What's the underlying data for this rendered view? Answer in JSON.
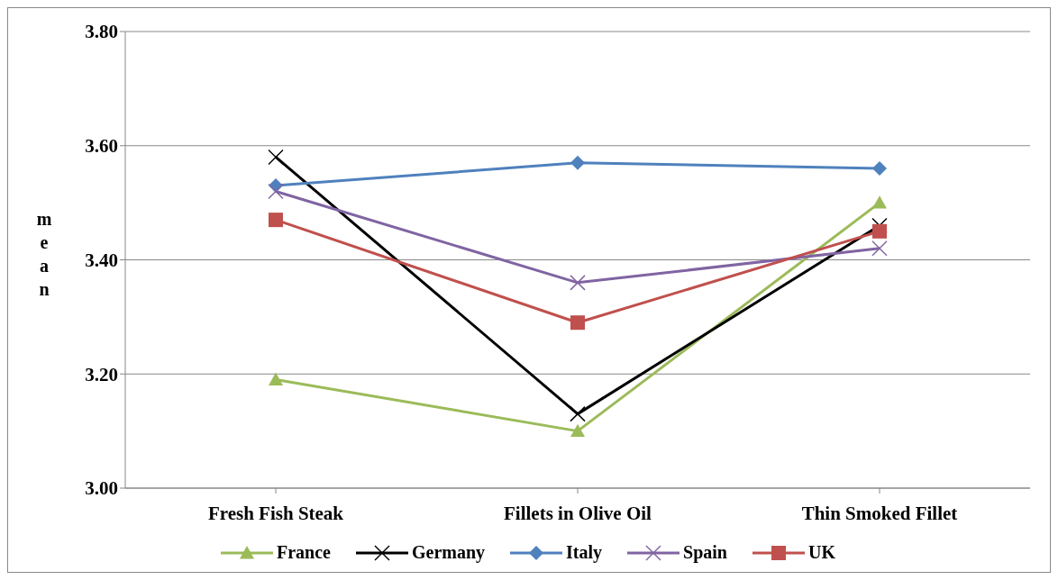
{
  "chart_data": {
    "type": "line",
    "ylabel": "mean",
    "categories": [
      "Fresh Fish Steak",
      "Fillets in Olive Oil",
      "Thin Smoked Fillet"
    ],
    "series": [
      {
        "name": "France",
        "color": "#9bbb59",
        "marker": "triangle",
        "values": [
          3.19,
          3.1,
          3.5
        ]
      },
      {
        "name": "Germany",
        "color": "#000000",
        "marker": "cross",
        "values": [
          3.58,
          3.13,
          3.46
        ]
      },
      {
        "name": "Italy",
        "color": "#4f81bd",
        "marker": "diamond",
        "values": [
          3.53,
          3.57,
          3.56
        ]
      },
      {
        "name": "Spain",
        "color": "#8064a2",
        "marker": "cross",
        "values": [
          3.52,
          3.36,
          3.42
        ]
      },
      {
        "name": "UK",
        "color": "#c0504d",
        "marker": "square",
        "values": [
          3.47,
          3.29,
          3.45
        ]
      }
    ],
    "ylim": [
      3.0,
      3.8
    ],
    "yticks": [
      {
        "value": 3.0,
        "label": "3.00"
      },
      {
        "value": 3.2,
        "label": "3.20"
      },
      {
        "value": 3.4,
        "label": "3.40"
      },
      {
        "value": 3.6,
        "label": "3.60"
      },
      {
        "value": 3.8,
        "label": "3.80"
      }
    ],
    "grid": "y",
    "legend": "bottom"
  }
}
